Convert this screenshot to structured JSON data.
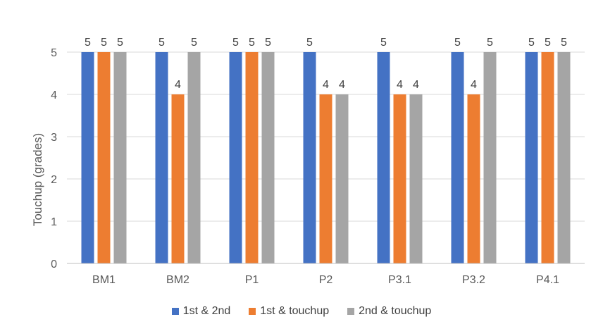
{
  "chart_data": {
    "type": "bar",
    "title": "",
    "xlabel": "",
    "ylabel": "Touchup (grades)",
    "ylim": [
      0,
      5
    ],
    "yticks": [
      0,
      1,
      2,
      3,
      4,
      5
    ],
    "grid": true,
    "legend_position": "bottom",
    "categories": [
      "BM1",
      "BM2",
      "P1",
      "P2",
      "P3.1",
      "P3.2",
      "P4.1"
    ],
    "series": [
      {
        "name": "1st & 2nd",
        "color": "#4472C4",
        "values": [
          5,
          5,
          5,
          5,
          5,
          5,
          5
        ]
      },
      {
        "name": "1st & touchup",
        "color": "#ED7D31",
        "values": [
          5,
          4,
          5,
          4,
          4,
          4,
          5
        ]
      },
      {
        "name": "2nd & touchup",
        "color": "#A5A5A5",
        "values": [
          5,
          5,
          5,
          4,
          4,
          5,
          5
        ]
      }
    ]
  }
}
